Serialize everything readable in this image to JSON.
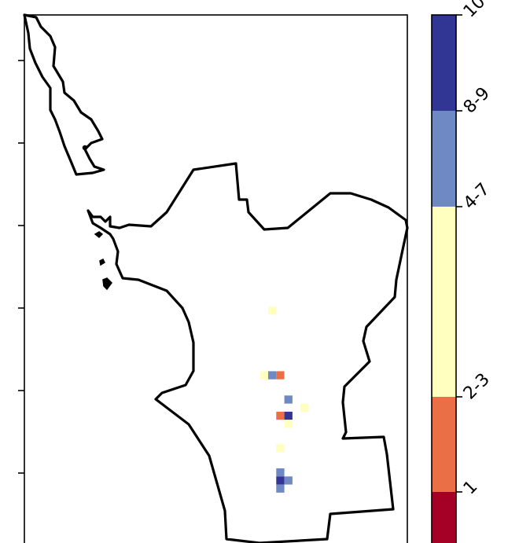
{
  "colorbar": {
    "bands": [
      {
        "label": "1",
        "color": "#a50026"
      },
      {
        "label": "2-3",
        "color": "#ea6f47"
      },
      {
        "label": "4-7",
        "color": "#ffffc0"
      },
      {
        "label": "8-9",
        "color": "#6f89c4"
      },
      {
        "label": "10",
        "color": "#313695"
      }
    ]
  },
  "cells": [
    {
      "row": 0,
      "col": 0,
      "band": "4-7"
    },
    {
      "row": 8,
      "col": -1,
      "band": "4-7"
    },
    {
      "row": 8,
      "col": 0,
      "band": "8-9"
    },
    {
      "row": 8,
      "col": 1,
      "band": "2-3"
    },
    {
      "row": 11,
      "col": 2,
      "band": "8-9"
    },
    {
      "row": 12,
      "col": 4,
      "band": "4-7"
    },
    {
      "row": 13,
      "col": 1,
      "band": "2-3"
    },
    {
      "row": 13,
      "col": 2,
      "band": "10"
    },
    {
      "row": 14,
      "col": 2,
      "band": "4-7"
    },
    {
      "row": 17,
      "col": 1,
      "band": "4-7"
    },
    {
      "row": 20,
      "col": 1,
      "band": "8-9"
    },
    {
      "row": 21,
      "col": 1,
      "band": "10"
    },
    {
      "row": 21,
      "col": 2,
      "band": "8-9"
    },
    {
      "row": 22,
      "col": 1,
      "band": "8-9"
    }
  ]
}
